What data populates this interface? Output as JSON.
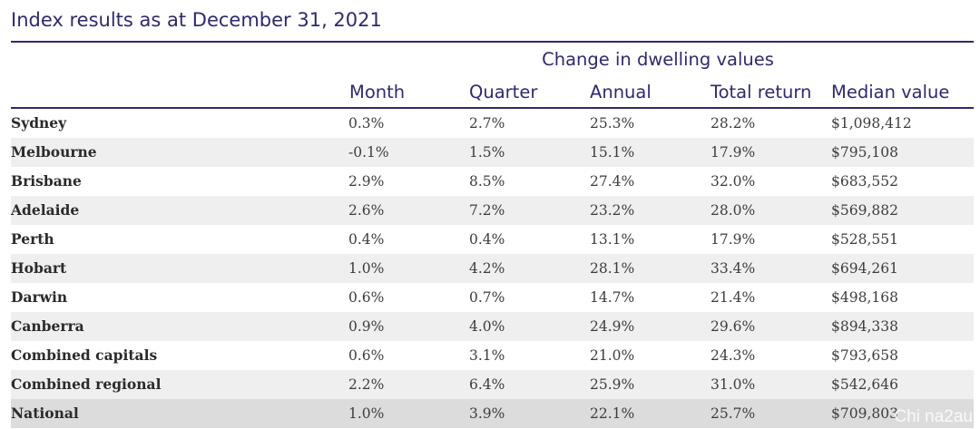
{
  "title": "Index results as at December 31, 2021",
  "table": {
    "group_header": "Change in dwelling values",
    "columns": [
      "Month",
      "Quarter",
      "Annual",
      "Total return",
      "Median value"
    ],
    "rows": [
      {
        "name": "Sydney",
        "values": [
          "0.3%",
          "2.7%",
          "25.3%",
          "28.2%",
          "$1,098,412"
        ]
      },
      {
        "name": "Melbourne",
        "values": [
          "-0.1%",
          "1.5%",
          "15.1%",
          "17.9%",
          "$795,108"
        ]
      },
      {
        "name": "Brisbane",
        "values": [
          "2.9%",
          "8.5%",
          "27.4%",
          "32.0%",
          "$683,552"
        ]
      },
      {
        "name": "Adelaide",
        "values": [
          "2.6%",
          "7.2%",
          "23.2%",
          "28.0%",
          "$569,882"
        ]
      },
      {
        "name": "Perth",
        "values": [
          "0.4%",
          "0.4%",
          "13.1%",
          "17.9%",
          "$528,551"
        ]
      },
      {
        "name": "Hobart",
        "values": [
          "1.0%",
          "4.2%",
          "28.1%",
          "33.4%",
          "$694,261"
        ]
      },
      {
        "name": "Darwin",
        "values": [
          "0.6%",
          "0.7%",
          "14.7%",
          "21.4%",
          "$498,168"
        ]
      },
      {
        "name": "Canberra",
        "values": [
          "0.9%",
          "4.0%",
          "24.9%",
          "29.6%",
          "$894,338"
        ]
      },
      {
        "name": "Combined capitals",
        "values": [
          "0.6%",
          "3.1%",
          "21.0%",
          "24.3%",
          "$793,658"
        ]
      },
      {
        "name": "Combined regional",
        "values": [
          "2.2%",
          "6.4%",
          "25.9%",
          "31.0%",
          "$542,646"
        ]
      },
      {
        "name": "National",
        "values": [
          "1.0%",
          "3.9%",
          "22.1%",
          "25.7%",
          "$709,803"
        ]
      }
    ]
  },
  "watermark": "Chi na2au"
}
